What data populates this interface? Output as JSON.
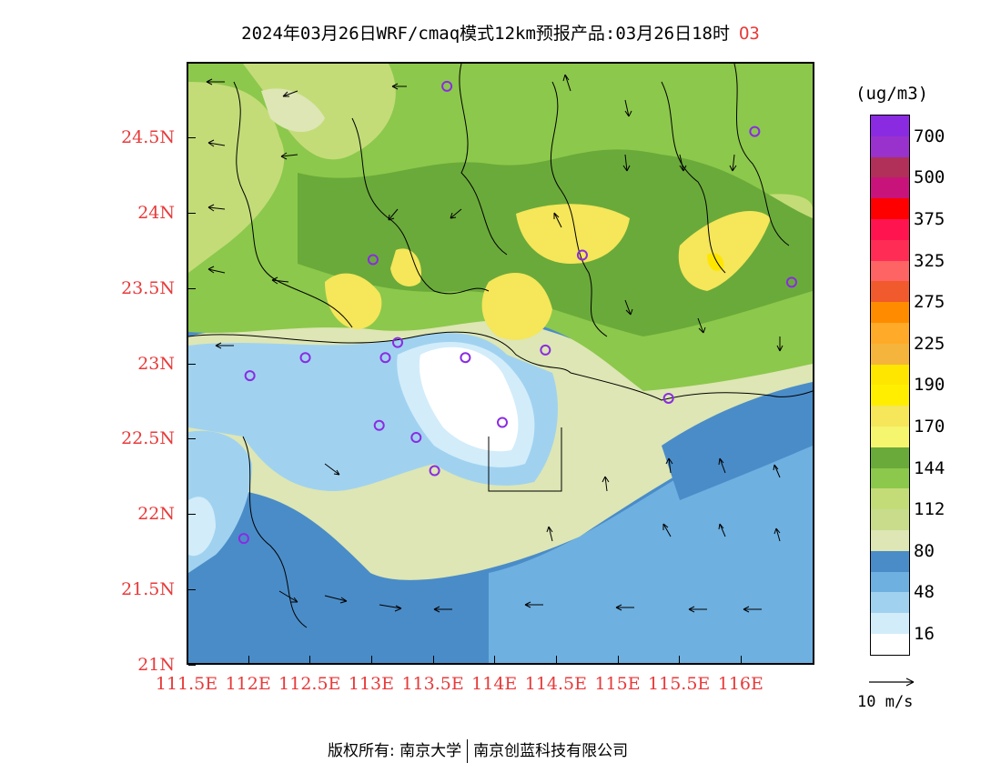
{
  "title": {
    "main": "2024年03月26日WRF/cmaq模式12km预报产品:03月26日18时",
    "species": "O3"
  },
  "axes": {
    "lat_labels": [
      "24.5N",
      "24N",
      "23.5N",
      "23N",
      "22.5N",
      "22N",
      "21.5N",
      "21N"
    ],
    "lat_values": [
      24.5,
      24.0,
      23.5,
      23.0,
      22.5,
      22.0,
      21.5,
      21.0
    ],
    "lon_labels": [
      "111.5E",
      "112E",
      "112.5E",
      "113E",
      "113.5E",
      "114E",
      "114.5E",
      "115E",
      "115.5E",
      "116E"
    ],
    "lon_values": [
      111.5,
      112.0,
      112.5,
      113.0,
      113.5,
      114.0,
      114.5,
      115.0,
      115.5,
      116.0
    ],
    "lat_range": [
      21.0,
      25.0
    ],
    "lon_range": [
      111.5,
      116.6
    ]
  },
  "colorbar": {
    "unit": "(ug/m3)",
    "colors_top_to_bottom": [
      "#8a2be2",
      "#9932cc",
      "#b0305a",
      "#c8147a",
      "#ff0000",
      "#ff1450",
      "#ff2d55",
      "#ff6464",
      "#f05a2d",
      "#ff8c00",
      "#ffaa28",
      "#f5b43c",
      "#ffe600",
      "#ffee00",
      "#f5e65a",
      "#f5f56e",
      "#6aaa3a",
      "#8cc84b",
      "#c3dc78",
      "#c8dc8c",
      "#dde6b4",
      "#4a8cc8",
      "#6eb0e0",
      "#a0d2f0",
      "#d2ecfa",
      "#ffffff"
    ],
    "labels": [
      {
        "text": "700",
        "index": 1
      },
      {
        "text": "500",
        "index": 3
      },
      {
        "text": "375",
        "index": 5
      },
      {
        "text": "325",
        "index": 7
      },
      {
        "text": "275",
        "index": 9
      },
      {
        "text": "225",
        "index": 11
      },
      {
        "text": "190",
        "index": 13
      },
      {
        "text": "170",
        "index": 15
      },
      {
        "text": "144",
        "index": 17
      },
      {
        "text": "112",
        "index": 19
      },
      {
        "text": "80",
        "index": 21
      },
      {
        "text": "48",
        "index": 23
      },
      {
        "text": "16",
        "index": 25
      }
    ]
  },
  "reference_vector": {
    "label": "10 m/s"
  },
  "stations": [
    {
      "lon": 113.6,
      "lat": 24.85
    },
    {
      "lon": 116.1,
      "lat": 24.55
    },
    {
      "lon": 113.0,
      "lat": 23.7
    },
    {
      "lon": 114.7,
      "lat": 23.73
    },
    {
      "lon": 116.4,
      "lat": 23.55
    },
    {
      "lon": 112.0,
      "lat": 22.93
    },
    {
      "lon": 112.45,
      "lat": 23.05
    },
    {
      "lon": 113.1,
      "lat": 23.05
    },
    {
      "lon": 113.2,
      "lat": 23.15
    },
    {
      "lon": 113.75,
      "lat": 23.05
    },
    {
      "lon": 114.4,
      "lat": 23.1
    },
    {
      "lon": 115.4,
      "lat": 22.78
    },
    {
      "lon": 113.05,
      "lat": 22.6
    },
    {
      "lon": 113.35,
      "lat": 22.52
    },
    {
      "lon": 113.5,
      "lat": 22.3
    },
    {
      "lon": 114.05,
      "lat": 22.62
    },
    {
      "lon": 111.95,
      "lat": 21.85
    }
  ],
  "footer": {
    "left": "版权所有: 南京大学",
    "right": "南京创蓝科技有限公司"
  }
}
